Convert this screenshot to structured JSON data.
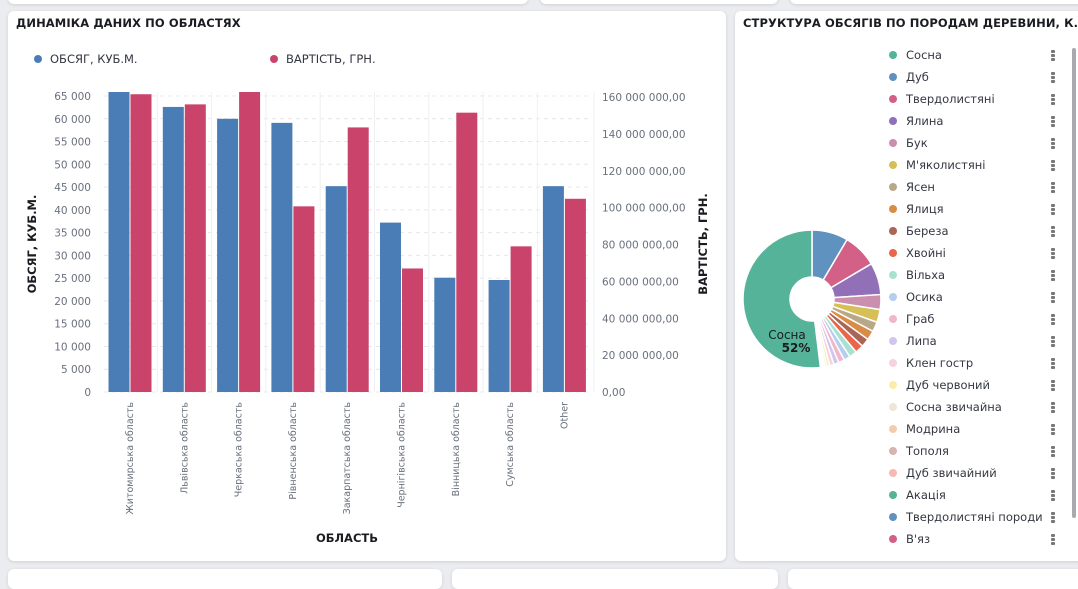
{
  "bar_panel": {
    "title": "ДИНАМІКА ДАНИХ ПО ОБЛАСТЯХ"
  },
  "pie_panel": {
    "title": "СТРУКТУРА ОБСЯГІВ ПО ПОРОДАМ ДЕРЕВИНИ, К..."
  },
  "chart_data": [
    {
      "type": "bar",
      "title": "ДИНАМІКА ДАНИХ ПО ОБЛАСТЯХ",
      "xlabel": "ОБЛАСТЬ",
      "ylabel": "ОБСЯГ, КУБ.М.",
      "y2label": "ВАРТІСТЬ, ГРН.",
      "legend_position": "top-left",
      "grid": true,
      "categories": [
        "Житомирська область",
        "Львівська область",
        "Черкаська область",
        "Рівненська область",
        "Закарпатська область",
        "Чернігівська область",
        "Вінницька область",
        "Сумська область",
        "Other"
      ],
      "series": [
        {
          "name": "ОБСЯГ, КУБ.М.",
          "axis": "left",
          "color": "#4a7db5",
          "values": [
            65900,
            62600,
            60000,
            59100,
            45200,
            37200,
            25100,
            24600,
            45200
          ]
        },
        {
          "name": "ВАРТІСТЬ, ГРН.",
          "axis": "right",
          "color": "#c9436b",
          "values": [
            161500000,
            156000000,
            162800000,
            100700000,
            143500000,
            67000000,
            151500000,
            79000000,
            104800000
          ]
        }
      ],
      "ylim": [
        0,
        65000
      ],
      "y2lim": [
        0,
        160000000
      ],
      "yticks": [
        "0",
        "5 000",
        "10 000",
        "15 000",
        "20 000",
        "25 000",
        "30 000",
        "35 000",
        "40 000",
        "45 000",
        "50 000",
        "55 000",
        "60 000",
        "65 000"
      ],
      "y2ticks": [
        "0,00",
        "20 000 000,00",
        "40 000 000,00",
        "60 000 000,00",
        "80 000 000,00",
        "100 000 000,00",
        "120 000 000,00",
        "140 000 000,00",
        "160 000 000,00"
      ]
    },
    {
      "type": "pie",
      "title": "СТРУКТУРА ОБСЯГІВ ПО ПОРОДАМ ДЕРЕВИНИ, К...",
      "donut": true,
      "center_label": {
        "name": "Сосна",
        "percent": "52%"
      },
      "slices": [
        {
          "label": "Сосна",
          "value": 52,
          "color": "#54b399"
        },
        {
          "label": "Дуб",
          "value": 8.5,
          "color": "#6092c0"
        },
        {
          "label": "Твердолистяні",
          "value": 8,
          "color": "#d36086"
        },
        {
          "label": "Ялина",
          "value": 7.5,
          "color": "#9170b8"
        },
        {
          "label": "Бук",
          "value": 3.5,
          "color": "#ca8eae"
        },
        {
          "label": "М'яколистяні",
          "value": 3,
          "color": "#d6bf57"
        },
        {
          "label": "Ясен",
          "value": 2.3,
          "color": "#b9a888"
        },
        {
          "label": "Ялиця",
          "value": 2.2,
          "color": "#da8b45"
        },
        {
          "label": "Береза",
          "value": 2,
          "color": "#aa6556"
        },
        {
          "label": "Хвойні",
          "value": 2,
          "color": "#e7664c"
        },
        {
          "label": "Вільха",
          "value": 1.8,
          "color": "#a8e0d1"
        },
        {
          "label": "Осика",
          "value": 1.5,
          "color": "#b5cdee"
        },
        {
          "label": "Граб",
          "value": 1.4,
          "color": "#f1b6c9"
        },
        {
          "label": "Липа",
          "value": 1.2,
          "color": "#d2c4ea"
        },
        {
          "label": "Клен гостр",
          "value": 1,
          "color": "#f6d2e0"
        },
        {
          "label": "Дуб червоний",
          "value": 0.7,
          "color": "#f7eea9"
        },
        {
          "label": "Сосна звичайна",
          "value": 0.5,
          "color": "#ece7da"
        },
        {
          "label": "Модрина",
          "value": 0.3,
          "color": "#f5ccab"
        },
        {
          "label": "Тополя",
          "value": 0.2,
          "color": "#d7b4af"
        },
        {
          "label": "Дуб звичайний",
          "value": 0.2,
          "color": "#f5bab0"
        },
        {
          "label": "Акація",
          "value": 0.1,
          "color": "#54b399"
        },
        {
          "label": "Твердолистяні породи",
          "value": 0.1,
          "color": "#6092c0"
        },
        {
          "label": "В'яз",
          "value": 0.1,
          "color": "#d36086"
        }
      ]
    }
  ]
}
